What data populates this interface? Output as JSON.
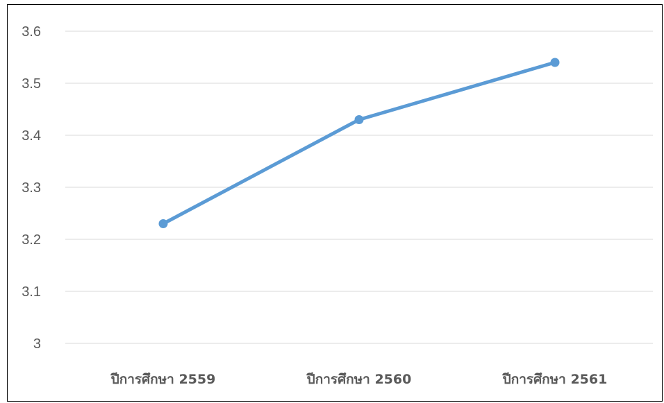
{
  "chart_data": {
    "type": "line",
    "title": "",
    "xlabel": "",
    "ylabel": "",
    "categories": [
      "ปีการศึกษา 2559",
      "ปีการศึกษา 2560",
      "ปีการศึกษา 2561"
    ],
    "series": [
      {
        "values": [
          3.23,
          3.43,
          3.54
        ],
        "color": "#5B9BD5"
      }
    ],
    "ylim": [
      3,
      3.6
    ],
    "yticks": [
      "3",
      "3.1",
      "3.2",
      "3.3",
      "3.4",
      "3.5",
      "3.6"
    ],
    "grid": true,
    "legend": "none",
    "markers": true
  }
}
